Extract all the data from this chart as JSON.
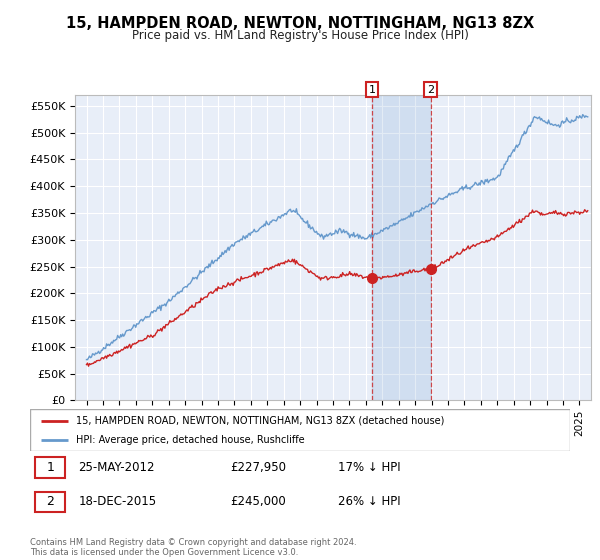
{
  "title": "15, HAMPDEN ROAD, NEWTON, NOTTINGHAM, NG13 8ZX",
  "subtitle": "Price paid vs. HM Land Registry's House Price Index (HPI)",
  "legend_line1": "15, HAMPDEN ROAD, NEWTON, NOTTINGHAM, NG13 8ZX (detached house)",
  "legend_line2": "HPI: Average price, detached house, Rushcliffe",
  "annotation1": {
    "label": "1",
    "date": "25-MAY-2012",
    "price": "£227,950",
    "pct": "17% ↓ HPI"
  },
  "annotation2": {
    "label": "2",
    "date": "18-DEC-2015",
    "price": "£245,000",
    "pct": "26% ↓ HPI"
  },
  "footer": "Contains HM Land Registry data © Crown copyright and database right 2024.\nThis data is licensed under the Open Government Licence v3.0.",
  "hpi_color": "#6699cc",
  "price_color": "#cc2222",
  "background_color": "#e8eef8",
  "ylim": [
    0,
    570000
  ],
  "yticks": [
    0,
    50000,
    100000,
    150000,
    200000,
    250000,
    300000,
    350000,
    400000,
    450000,
    500000,
    550000
  ],
  "ytick_labels": [
    "£0",
    "£50K",
    "£100K",
    "£150K",
    "£200K",
    "£250K",
    "£300K",
    "£350K",
    "£400K",
    "£450K",
    "£500K",
    "£550K"
  ],
  "ann1_x": 2012.38,
  "ann2_x": 2015.95,
  "ann1_y": 227950,
  "ann2_y": 245000,
  "xlim_left": 1994.3,
  "xlim_right": 2025.7
}
